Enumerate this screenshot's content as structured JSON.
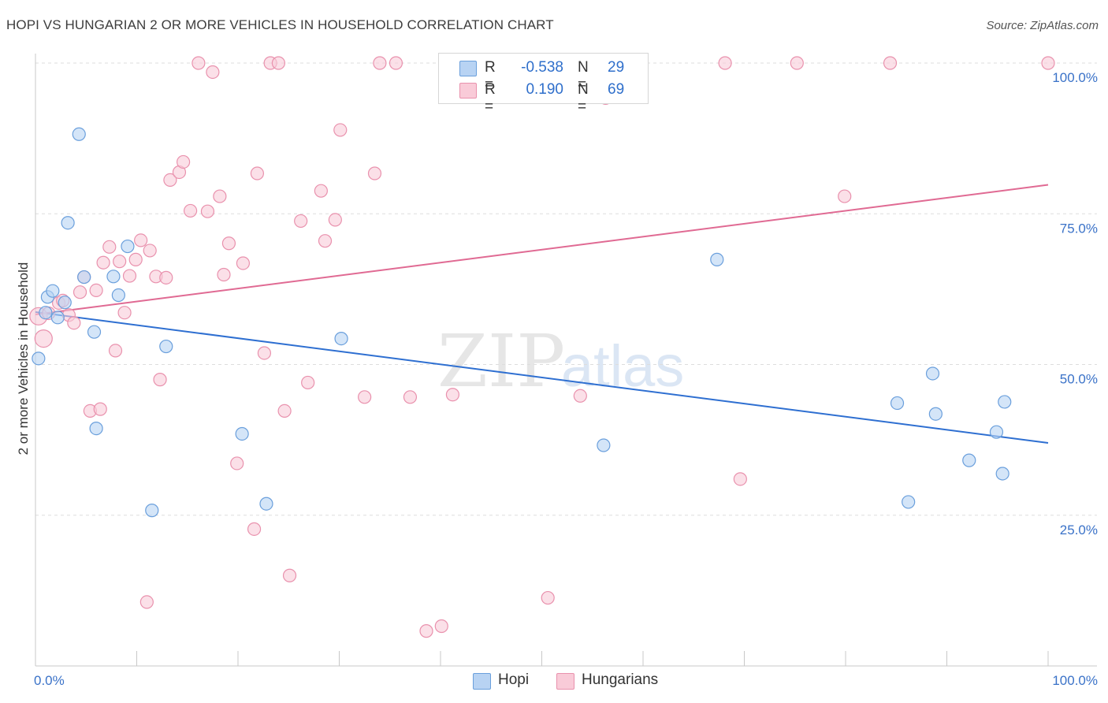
{
  "title": "HOPI VS HUNGARIAN 2 OR MORE VEHICLES IN HOUSEHOLD CORRELATION CHART",
  "source": "Source: ZipAtlas.com",
  "watermark": {
    "zip": "ZIP",
    "atlas": "atlas"
  },
  "legend": {
    "rows": [
      {
        "r_label": "R =",
        "r_value": "-0.538",
        "n_label": "N =",
        "n_value": "29"
      },
      {
        "r_label": "R =",
        "r_value": "0.190",
        "n_label": "N =",
        "n_value": "69"
      }
    ]
  },
  "bottom_legend": [
    "Hopi",
    "Hungarians"
  ],
  "colors": {
    "hopi_fill": "#b8d3f3",
    "hopi_stroke": "#6a9fdc",
    "hopi_line": "#2e6fd1",
    "hung_fill": "#f9cbd8",
    "hung_stroke": "#e991ad",
    "hung_line": "#e06a93",
    "tick_label": "#3a72c8",
    "grid": "#dddddd"
  },
  "chart_data": {
    "type": "scatter",
    "title": "HOPI VS HUNGARIAN 2 OR MORE VEHICLES IN HOUSEHOLD CORRELATION CHART",
    "xlabel": "",
    "ylabel": "2 or more Vehicles in Household",
    "xlim": [
      0,
      100
    ],
    "ylim": [
      0,
      100
    ],
    "x_tick_labels": [
      "0.0%",
      "100.0%"
    ],
    "y_ticks": [
      25,
      50,
      75,
      100
    ],
    "y_tick_labels": [
      "25.0%",
      "50.0%",
      "75.0%",
      "100.0%"
    ],
    "grid": true,
    "legend_position": "top-center",
    "series": [
      {
        "name": "Hopi",
        "r": -0.538,
        "n": 29,
        "trend": {
          "x": [
            0,
            100
          ],
          "y": [
            58.7,
            37.0
          ]
        },
        "points": [
          {
            "x": 0.3,
            "y": 51.0
          },
          {
            "x": 1.0,
            "y": 58.6
          },
          {
            "x": 1.2,
            "y": 61.2
          },
          {
            "x": 1.7,
            "y": 62.2
          },
          {
            "x": 2.2,
            "y": 57.8
          },
          {
            "x": 2.9,
            "y": 60.3
          },
          {
            "x": 3.2,
            "y": 73.5
          },
          {
            "x": 4.3,
            "y": 88.2
          },
          {
            "x": 4.8,
            "y": 64.5
          },
          {
            "x": 5.8,
            "y": 55.4
          },
          {
            "x": 6.0,
            "y": 39.4
          },
          {
            "x": 7.7,
            "y": 64.6
          },
          {
            "x": 8.2,
            "y": 61.5
          },
          {
            "x": 9.1,
            "y": 69.6
          },
          {
            "x": 11.5,
            "y": 25.8
          },
          {
            "x": 12.9,
            "y": 53.0
          },
          {
            "x": 20.4,
            "y": 38.5
          },
          {
            "x": 22.8,
            "y": 26.9
          },
          {
            "x": 30.2,
            "y": 54.3
          },
          {
            "x": 56.1,
            "y": 36.6
          },
          {
            "x": 67.3,
            "y": 67.4
          },
          {
            "x": 85.1,
            "y": 43.6
          },
          {
            "x": 86.2,
            "y": 27.2
          },
          {
            "x": 88.6,
            "y": 48.5
          },
          {
            "x": 88.9,
            "y": 41.8
          },
          {
            "x": 92.2,
            "y": 34.1
          },
          {
            "x": 94.9,
            "y": 38.8
          },
          {
            "x": 95.5,
            "y": 31.9
          },
          {
            "x": 95.7,
            "y": 43.8
          }
        ]
      },
      {
        "name": "Hungarians",
        "r": 0.19,
        "n": 69,
        "trend": {
          "x": [
            0,
            100
          ],
          "y": [
            58.3,
            79.8
          ]
        },
        "points": [
          {
            "x": 0.3,
            "y": 58.0
          },
          {
            "x": 0.8,
            "y": 54.3
          },
          {
            "x": 1.3,
            "y": 58.5
          },
          {
            "x": 2.3,
            "y": 60.2
          },
          {
            "x": 2.7,
            "y": 60.6
          },
          {
            "x": 3.3,
            "y": 58.2
          },
          {
            "x": 3.8,
            "y": 56.9
          },
          {
            "x": 4.4,
            "y": 62.0
          },
          {
            "x": 4.8,
            "y": 64.5
          },
          {
            "x": 5.4,
            "y": 42.3
          },
          {
            "x": 6.0,
            "y": 62.3
          },
          {
            "x": 6.4,
            "y": 42.6
          },
          {
            "x": 6.7,
            "y": 66.9
          },
          {
            "x": 7.3,
            "y": 69.5
          },
          {
            "x": 7.9,
            "y": 52.3
          },
          {
            "x": 8.3,
            "y": 67.1
          },
          {
            "x": 8.8,
            "y": 58.6
          },
          {
            "x": 9.3,
            "y": 64.7
          },
          {
            "x": 9.9,
            "y": 67.4
          },
          {
            "x": 10.4,
            "y": 70.6
          },
          {
            "x": 11.0,
            "y": 10.6
          },
          {
            "x": 11.3,
            "y": 68.9
          },
          {
            "x": 11.9,
            "y": 64.6
          },
          {
            "x": 12.3,
            "y": 47.5
          },
          {
            "x": 12.9,
            "y": 64.4
          },
          {
            "x": 13.3,
            "y": 80.6
          },
          {
            "x": 14.2,
            "y": 81.9
          },
          {
            "x": 14.6,
            "y": 83.6
          },
          {
            "x": 15.3,
            "y": 75.5
          },
          {
            "x": 16.1,
            "y": 100.0
          },
          {
            "x": 17.0,
            "y": 75.4
          },
          {
            "x": 17.5,
            "y": 98.5
          },
          {
            "x": 18.2,
            "y": 77.9
          },
          {
            "x": 18.6,
            "y": 64.9
          },
          {
            "x": 19.1,
            "y": 70.1
          },
          {
            "x": 19.9,
            "y": 33.6
          },
          {
            "x": 20.5,
            "y": 66.8
          },
          {
            "x": 21.6,
            "y": 22.7
          },
          {
            "x": 21.9,
            "y": 81.7
          },
          {
            "x": 22.6,
            "y": 51.9
          },
          {
            "x": 23.2,
            "y": 100.0
          },
          {
            "x": 24.0,
            "y": 100.0
          },
          {
            "x": 24.6,
            "y": 42.3
          },
          {
            "x": 25.1,
            "y": 15.0
          },
          {
            "x": 26.2,
            "y": 73.8
          },
          {
            "x": 26.9,
            "y": 47.0
          },
          {
            "x": 28.2,
            "y": 78.8
          },
          {
            "x": 28.6,
            "y": 70.5
          },
          {
            "x": 29.6,
            "y": 74.0
          },
          {
            "x": 30.1,
            "y": 88.9
          },
          {
            "x": 32.5,
            "y": 44.6
          },
          {
            "x": 33.5,
            "y": 81.7
          },
          {
            "x": 34.0,
            "y": 100.0
          },
          {
            "x": 35.6,
            "y": 100.0
          },
          {
            "x": 37.0,
            "y": 44.6
          },
          {
            "x": 38.6,
            "y": 5.8
          },
          {
            "x": 40.1,
            "y": 6.6
          },
          {
            "x": 41.2,
            "y": 45.0
          },
          {
            "x": 50.6,
            "y": 11.3
          },
          {
            "x": 52.3,
            "y": 100.0
          },
          {
            "x": 53.8,
            "y": 44.8
          },
          {
            "x": 56.3,
            "y": 94.2
          },
          {
            "x": 58.3,
            "y": 100.0
          },
          {
            "x": 68.1,
            "y": 100.0
          },
          {
            "x": 69.6,
            "y": 31.0
          },
          {
            "x": 75.2,
            "y": 100.0
          },
          {
            "x": 79.9,
            "y": 77.9
          },
          {
            "x": 84.4,
            "y": 100.0
          },
          {
            "x": 100.0,
            "y": 100.0
          }
        ]
      }
    ]
  }
}
